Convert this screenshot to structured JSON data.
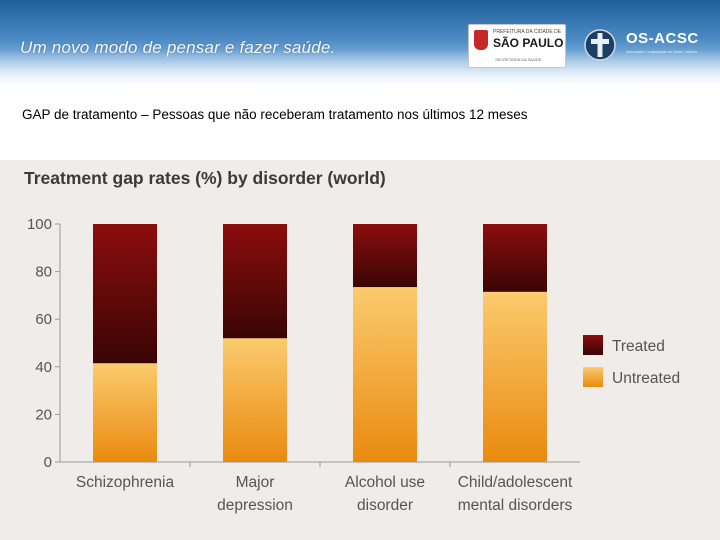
{
  "header": {
    "tagline": "Um novo modo de pensar e fazer saúde.",
    "logo_sp_line1": "PREFEITURA DA CIDADE DE",
    "logo_sp_name": "SÃO PAULO",
    "logo_sp_line3": "SECRETARIA DA SAÚDE",
    "logo_os_name": "OS-ACSC",
    "logo_os_sub": "Associação Congregação de Santa Catarina",
    "colors": {
      "banner": "#2e6eac"
    }
  },
  "subtitle": "GAP de  tratamento – Pessoas que não receberam tratamento nos últimos 12 meses",
  "chart_data": {
    "type": "bar",
    "stacked": true,
    "title": "Treatment gap rates (%) by disorder (world)",
    "categories": [
      [
        "Schizophrenia"
      ],
      [
        "Major",
        "depression"
      ],
      [
        "Alcohol use",
        "disorder"
      ],
      [
        "Child/adolescent",
        "mental disorders"
      ]
    ],
    "series": [
      {
        "name": "Untreated",
        "values": [
          41.5,
          52,
          73.5,
          71.5
        ],
        "color_top": "#fbcb6e",
        "color_bottom": "#e98a0f"
      },
      {
        "name": "Treated",
        "values": [
          58.5,
          48,
          26.5,
          28.5
        ],
        "color_top": "#8c0d0d",
        "color_bottom": "#3a0505"
      }
    ],
    "yticks": [
      0,
      20,
      40,
      60,
      80,
      100
    ],
    "ylim": [
      0,
      100
    ],
    "legend": [
      "Treated",
      "Untreated"
    ],
    "legend_placement": "right",
    "grid": false
  }
}
